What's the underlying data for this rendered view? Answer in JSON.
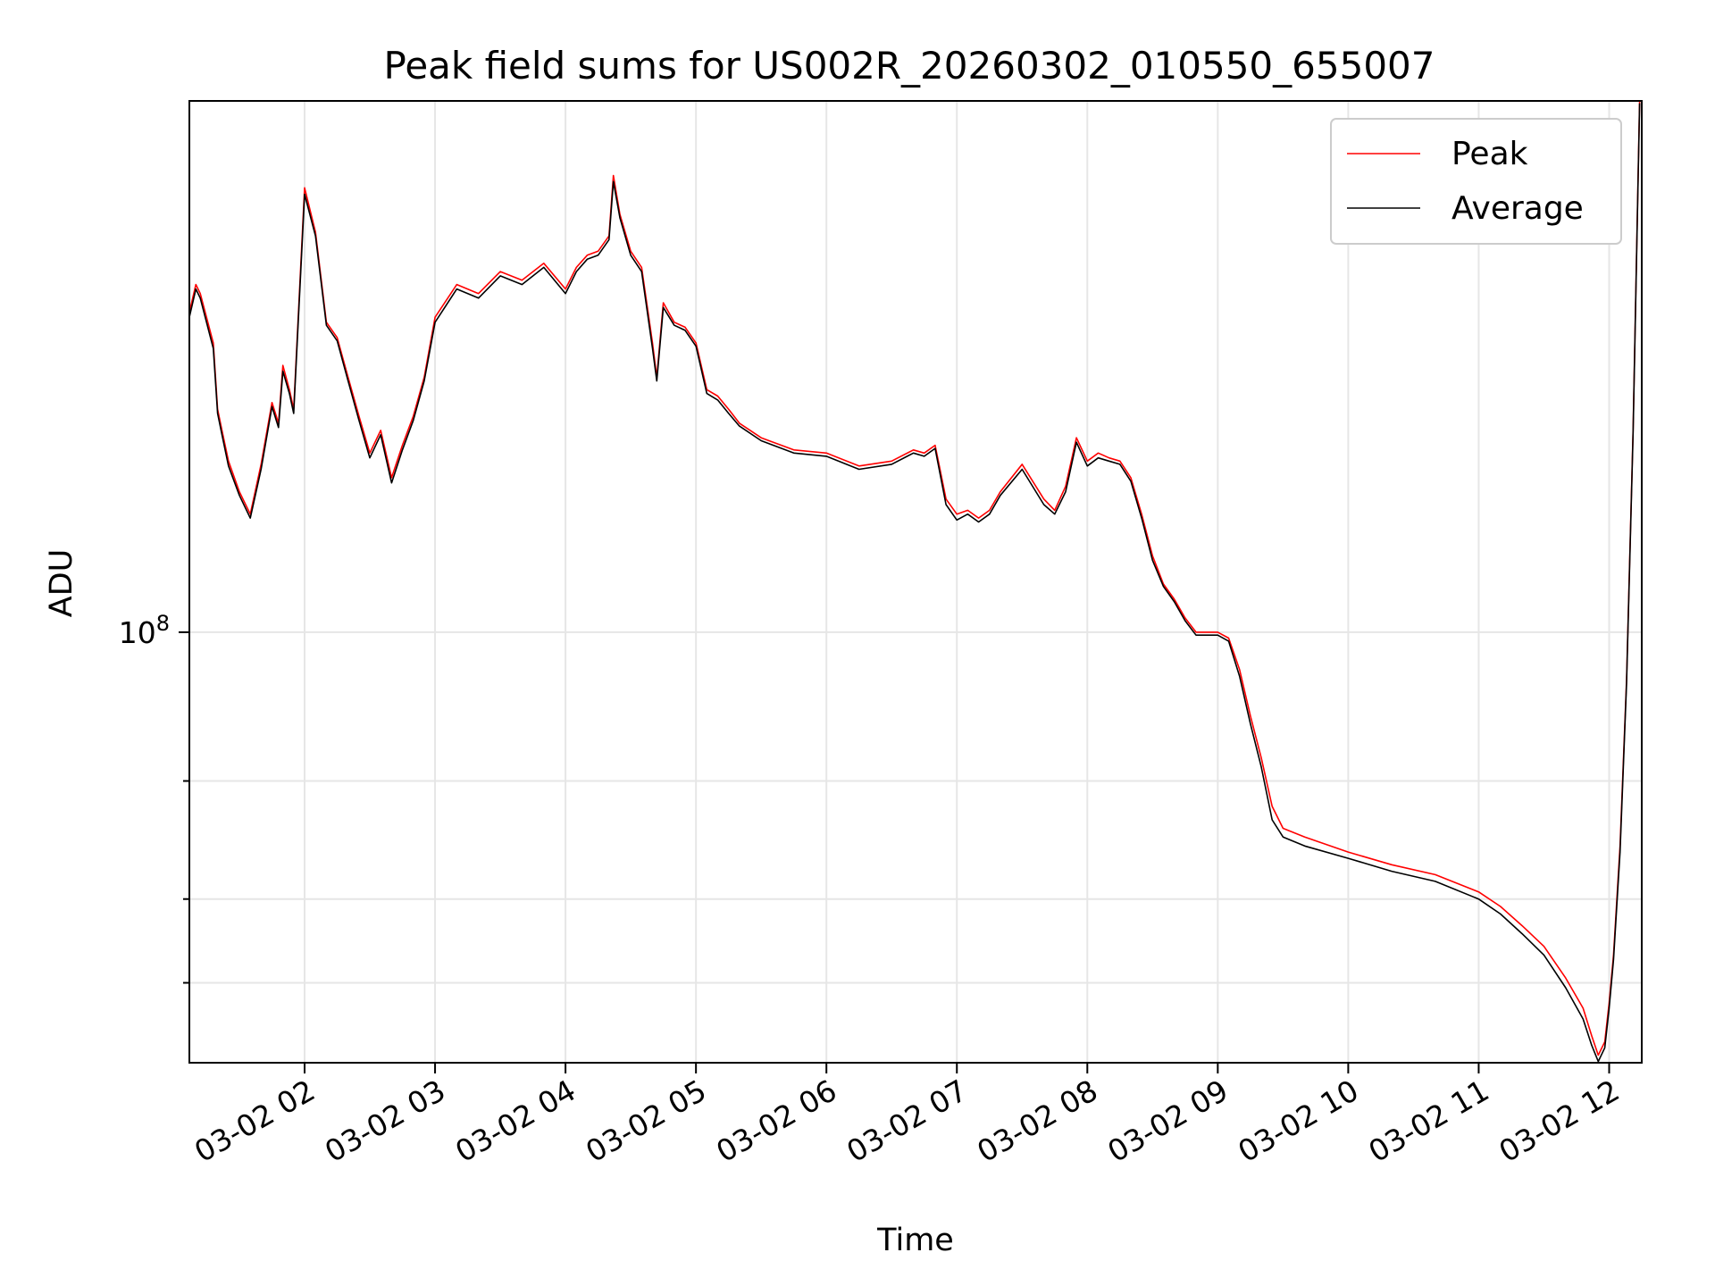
{
  "chart_data": {
    "type": "line",
    "title": "Peak field sums for US002R_20260302_010550_655007",
    "xlabel": "Time",
    "ylabel": "ADU",
    "yscale": "log",
    "grid": true,
    "legend_position": "top-right",
    "xlim": [
      "2026-03-02 01:07",
      "2026-03-02 12:15"
    ],
    "ylim": [
      22800000,
      620000000
    ],
    "x_ticks": [
      {
        "t": "2026-03-02 02:00",
        "label": "03-02 02"
      },
      {
        "t": "2026-03-02 03:00",
        "label": "03-02 03"
      },
      {
        "t": "2026-03-02 04:00",
        "label": "03-02 04"
      },
      {
        "t": "2026-03-02 05:00",
        "label": "03-02 05"
      },
      {
        "t": "2026-03-02 06:00",
        "label": "03-02 06"
      },
      {
        "t": "2026-03-02 07:00",
        "label": "03-02 07"
      },
      {
        "t": "2026-03-02 08:00",
        "label": "03-02 08"
      },
      {
        "t": "2026-03-02 09:00",
        "label": "03-02 09"
      },
      {
        "t": "2026-03-02 10:00",
        "label": "03-02 10"
      },
      {
        "t": "2026-03-02 11:00",
        "label": "03-02 11"
      },
      {
        "t": "2026-03-02 12:00",
        "label": "03-02 12"
      }
    ],
    "y_major_tick": {
      "value": 100000000,
      "label_base": "10",
      "label_exp": "8"
    },
    "y_minor_ticks": [
      30000000,
      40000000,
      60000000
    ],
    "colors": {
      "peak": "#ff0000",
      "average": "#000000",
      "grid": "#e6e6e6"
    },
    "series": [
      {
        "name": "Peak",
        "x": [
          "2026-03-02 01:07",
          "2026-03-02 01:10",
          "2026-03-02 01:12",
          "2026-03-02 01:18",
          "2026-03-02 01:20",
          "2026-03-02 01:22",
          "2026-03-02 01:25",
          "2026-03-02 01:30",
          "2026-03-02 01:35",
          "2026-03-02 01:40",
          "2026-03-02 01:45",
          "2026-03-02 01:48",
          "2026-03-02 01:50",
          "2026-03-02 01:53",
          "2026-03-02 01:55",
          "2026-03-02 02:00",
          "2026-03-02 02:05",
          "2026-03-02 02:10",
          "2026-03-02 02:15",
          "2026-03-02 02:20",
          "2026-03-02 02:25",
          "2026-03-02 02:30",
          "2026-03-02 02:35",
          "2026-03-02 02:40",
          "2026-03-02 02:45",
          "2026-03-02 02:50",
          "2026-03-02 02:55",
          "2026-03-02 03:00",
          "2026-03-02 03:10",
          "2026-03-02 03:20",
          "2026-03-02 03:30",
          "2026-03-02 03:40",
          "2026-03-02 03:50",
          "2026-03-02 04:00",
          "2026-03-02 04:05",
          "2026-03-02 04:10",
          "2026-03-02 04:15",
          "2026-03-02 04:20",
          "2026-03-02 04:22",
          "2026-03-02 04:25",
          "2026-03-02 04:30",
          "2026-03-02 04:35",
          "2026-03-02 04:40",
          "2026-03-02 04:42",
          "2026-03-02 04:45",
          "2026-03-02 04:50",
          "2026-03-02 04:55",
          "2026-03-02 05:00",
          "2026-03-02 05:05",
          "2026-03-02 05:10",
          "2026-03-02 05:15",
          "2026-03-02 05:20",
          "2026-03-02 05:30",
          "2026-03-02 05:45",
          "2026-03-02 06:00",
          "2026-03-02 06:15",
          "2026-03-02 06:30",
          "2026-03-02 06:40",
          "2026-03-02 06:45",
          "2026-03-02 06:50",
          "2026-03-02 06:55",
          "2026-03-02 07:00",
          "2026-03-02 07:05",
          "2026-03-02 07:10",
          "2026-03-02 07:15",
          "2026-03-02 07:20",
          "2026-03-02 07:30",
          "2026-03-02 07:40",
          "2026-03-02 07:45",
          "2026-03-02 07:50",
          "2026-03-02 07:55",
          "2026-03-02 08:00",
          "2026-03-02 08:05",
          "2026-03-02 08:10",
          "2026-03-02 08:15",
          "2026-03-02 08:20",
          "2026-03-02 08:25",
          "2026-03-02 08:30",
          "2026-03-02 08:35",
          "2026-03-02 08:40",
          "2026-03-02 08:45",
          "2026-03-02 08:50",
          "2026-03-02 08:55",
          "2026-03-02 09:00",
          "2026-03-02 09:05",
          "2026-03-02 09:10",
          "2026-03-02 09:15",
          "2026-03-02 09:20",
          "2026-03-02 09:25",
          "2026-03-02 09:30",
          "2026-03-02 09:40",
          "2026-03-02 10:00",
          "2026-03-02 10:20",
          "2026-03-02 10:40",
          "2026-03-02 11:00",
          "2026-03-02 11:10",
          "2026-03-02 11:20",
          "2026-03-02 11:30",
          "2026-03-02 11:40",
          "2026-03-02 11:48",
          "2026-03-02 11:52",
          "2026-03-02 11:55",
          "2026-03-02 11:58",
          "2026-03-02 12:00",
          "2026-03-02 12:02",
          "2026-03-02 12:05",
          "2026-03-02 12:08",
          "2026-03-02 12:11",
          "2026-03-02 12:14"
        ],
        "y": [
          300000000,
          330000000,
          320000000,
          270000000,
          215000000,
          200000000,
          180000000,
          162000000,
          150000000,
          178000000,
          220000000,
          205000000,
          250000000,
          230000000,
          215000000,
          460000000,
          395000000,
          290000000,
          275000000,
          240000000,
          210000000,
          185000000,
          200000000,
          170000000,
          190000000,
          210000000,
          240000000,
          295000000,
          330000000,
          320000000,
          345000000,
          335000000,
          355000000,
          325000000,
          350000000,
          365000000,
          370000000,
          390000000,
          480000000,
          420000000,
          370000000,
          350000000,
          270000000,
          240000000,
          310000000,
          290000000,
          285000000,
          270000000,
          230000000,
          225000000,
          215000000,
          205000000,
          195000000,
          187000000,
          185000000,
          177000000,
          180000000,
          187000000,
          185000000,
          190000000,
          158000000,
          150000000,
          152000000,
          148000000,
          152000000,
          162000000,
          178000000,
          158000000,
          152000000,
          165000000,
          195000000,
          180000000,
          185000000,
          182000000,
          180000000,
          170000000,
          150000000,
          130000000,
          118000000,
          112000000,
          105000000,
          100000000,
          100000000,
          100000000,
          98000000,
          88000000,
          75000000,
          65000000,
          55000000,
          51000000,
          49500000,
          47000000,
          45000000,
          43500000,
          41000000,
          39000000,
          36500000,
          34000000,
          30500000,
          27500000,
          25000000,
          23400000,
          24500000,
          28000000,
          33000000,
          48000000,
          85000000,
          200000000,
          620000000
        ]
      },
      {
        "name": "Average",
        "x": [
          "2026-03-02 01:07",
          "2026-03-02 01:10",
          "2026-03-02 01:12",
          "2026-03-02 01:18",
          "2026-03-02 01:20",
          "2026-03-02 01:22",
          "2026-03-02 01:25",
          "2026-03-02 01:30",
          "2026-03-02 01:35",
          "2026-03-02 01:40",
          "2026-03-02 01:45",
          "2026-03-02 01:48",
          "2026-03-02 01:50",
          "2026-03-02 01:53",
          "2026-03-02 01:55",
          "2026-03-02 02:00",
          "2026-03-02 02:05",
          "2026-03-02 02:10",
          "2026-03-02 02:15",
          "2026-03-02 02:20",
          "2026-03-02 02:25",
          "2026-03-02 02:30",
          "2026-03-02 02:35",
          "2026-03-02 02:40",
          "2026-03-02 02:45",
          "2026-03-02 02:50",
          "2026-03-02 02:55",
          "2026-03-02 03:00",
          "2026-03-02 03:10",
          "2026-03-02 03:20",
          "2026-03-02 03:30",
          "2026-03-02 03:40",
          "2026-03-02 03:50",
          "2026-03-02 04:00",
          "2026-03-02 04:05",
          "2026-03-02 04:10",
          "2026-03-02 04:15",
          "2026-03-02 04:20",
          "2026-03-02 04:22",
          "2026-03-02 04:25",
          "2026-03-02 04:30",
          "2026-03-02 04:35",
          "2026-03-02 04:40",
          "2026-03-02 04:42",
          "2026-03-02 04:45",
          "2026-03-02 04:50",
          "2026-03-02 04:55",
          "2026-03-02 05:00",
          "2026-03-02 05:05",
          "2026-03-02 05:10",
          "2026-03-02 05:15",
          "2026-03-02 05:20",
          "2026-03-02 05:30",
          "2026-03-02 05:45",
          "2026-03-02 06:00",
          "2026-03-02 06:15",
          "2026-03-02 06:30",
          "2026-03-02 06:40",
          "2026-03-02 06:45",
          "2026-03-02 06:50",
          "2026-03-02 06:55",
          "2026-03-02 07:00",
          "2026-03-02 07:05",
          "2026-03-02 07:10",
          "2026-03-02 07:15",
          "2026-03-02 07:20",
          "2026-03-02 07:30",
          "2026-03-02 07:40",
          "2026-03-02 07:45",
          "2026-03-02 07:50",
          "2026-03-02 07:55",
          "2026-03-02 08:00",
          "2026-03-02 08:05",
          "2026-03-02 08:10",
          "2026-03-02 08:15",
          "2026-03-02 08:20",
          "2026-03-02 08:25",
          "2026-03-02 08:30",
          "2026-03-02 08:35",
          "2026-03-02 08:40",
          "2026-03-02 08:45",
          "2026-03-02 08:50",
          "2026-03-02 08:55",
          "2026-03-02 09:00",
          "2026-03-02 09:05",
          "2026-03-02 09:10",
          "2026-03-02 09:15",
          "2026-03-02 09:20",
          "2026-03-02 09:25",
          "2026-03-02 09:30",
          "2026-03-02 09:40",
          "2026-03-02 10:00",
          "2026-03-02 10:20",
          "2026-03-02 10:40",
          "2026-03-02 11:00",
          "2026-03-02 11:10",
          "2026-03-02 11:20",
          "2026-03-02 11:30",
          "2026-03-02 11:40",
          "2026-03-02 11:48",
          "2026-03-02 11:52",
          "2026-03-02 11:55",
          "2026-03-02 11:58",
          "2026-03-02 12:00",
          "2026-03-02 12:02",
          "2026-03-02 12:05",
          "2026-03-02 12:08",
          "2026-03-02 12:11",
          "2026-03-02 12:14"
        ],
        "y": [
          295000000,
          325000000,
          315000000,
          265000000,
          212000000,
          197000000,
          177000000,
          160000000,
          148000000,
          175000000,
          217000000,
          202000000,
          245000000,
          227000000,
          212000000,
          450000000,
          390000000,
          287000000,
          272000000,
          237000000,
          207000000,
          182000000,
          197000000,
          167000000,
          187000000,
          207000000,
          237000000,
          290000000,
          325000000,
          315000000,
          340000000,
          330000000,
          350000000,
          320000000,
          345000000,
          360000000,
          365000000,
          385000000,
          470000000,
          415000000,
          365000000,
          345000000,
          265000000,
          237000000,
          305000000,
          287000000,
          282000000,
          267000000,
          227000000,
          222000000,
          212000000,
          203000000,
          193000000,
          185000000,
          183000000,
          175000000,
          178000000,
          185000000,
          183000000,
          188000000,
          155000000,
          147000000,
          150000000,
          146000000,
          150000000,
          160000000,
          175000000,
          155000000,
          150000000,
          162000000,
          192000000,
          177000000,
          182000000,
          180000000,
          178000000,
          168000000,
          148000000,
          128000000,
          117000000,
          111000000,
          104000000,
          99000000,
          99000000,
          99000000,
          97000000,
          86000000,
          73000000,
          63000000,
          52500000,
          49500000,
          48000000,
          46000000,
          44000000,
          42500000,
          40000000,
          38000000,
          35500000,
          33000000,
          29500000,
          26500000,
          24200000,
          22900000,
          24000000,
          27500000,
          32500000,
          47000000,
          84000000,
          198000000,
          615000000
        ]
      }
    ]
  }
}
